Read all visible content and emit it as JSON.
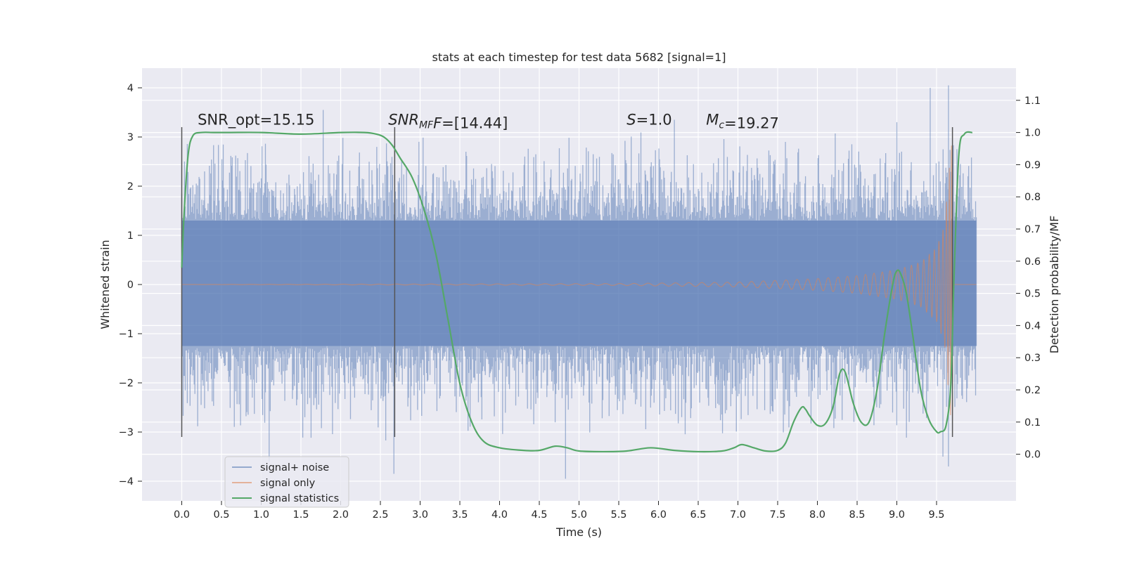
{
  "chart_data": {
    "type": "line",
    "title": "stats at each timestep for test data 5682 [signal=1]",
    "xlabel": "Time (s)",
    "ylabel": "Whitened strain",
    "ylabel_right": "Detection probability/MF",
    "xlim": [
      -0.5,
      10.5
    ],
    "ylim": [
      -4.4,
      4.4
    ],
    "ylim_right": [
      -0.145,
      1.2
    ],
    "x_ticks": [
      0.0,
      0.5,
      1.0,
      1.5,
      2.0,
      2.5,
      3.0,
      3.5,
      4.0,
      4.5,
      5.0,
      5.5,
      6.0,
      6.5,
      7.0,
      7.5,
      8.0,
      8.5,
      9.0,
      9.5
    ],
    "x_tick_labels": [
      "0.0",
      "0.5",
      "1.0",
      "1.5",
      "2.0",
      "2.5",
      "3.0",
      "3.5",
      "4.0",
      "4.5",
      "5.0",
      "5.5",
      "6.0",
      "6.5",
      "7.0",
      "7.5",
      "8.0",
      "8.5",
      "9.0",
      "9.5"
    ],
    "y_ticks": [
      4,
      3,
      2,
      1,
      0,
      -1,
      -2,
      -3,
      -4
    ],
    "y_tick_labels": [
      "4",
      "3",
      "2",
      "1",
      "0",
      "−1",
      "−2",
      "−3",
      "−4"
    ],
    "y_right_ticks": [
      1.1,
      1.0,
      0.9,
      0.8,
      0.7,
      0.6,
      0.5,
      0.4,
      0.3,
      0.2,
      0.1,
      0.0
    ],
    "y_right_tick_labels": [
      "1.1",
      "1.0",
      "0.9",
      "0.8",
      "0.7",
      "0.6",
      "0.5",
      "0.4",
      "0.3",
      "0.2",
      "0.1",
      "0.0"
    ],
    "grid": true,
    "legend_position": "lower-left",
    "series": [
      {
        "name": "signal+ noise",
        "color": "#4c72b0",
        "axis": "left",
        "x_range": [
          0.0,
          10.0
        ],
        "band_core": [
          -1.25,
          1.3
        ],
        "typical_spike_range": [
          -2.6,
          2.6
        ],
        "peaks": [
          {
            "x": 1.78,
            "y": 3.55
          },
          {
            "x": 6.2,
            "y": 3.35
          },
          {
            "x": 9.42,
            "y": 4.0
          },
          {
            "x": 9.65,
            "y": 4.05
          },
          {
            "x": 9.0,
            "y": 3.3
          },
          {
            "x": 1.1,
            "y": -3.6
          },
          {
            "x": 2.67,
            "y": -3.85
          },
          {
            "x": 4.83,
            "y": -3.95
          },
          {
            "x": 9.65,
            "y": -3.7
          },
          {
            "x": 9.58,
            "y": -3.5
          }
        ]
      },
      {
        "name": "signal only",
        "color": "#dd8452",
        "axis": "left",
        "envelope": [
          [
            0.0,
            0.0
          ],
          [
            5.5,
            0.02
          ],
          [
            7.0,
            0.05
          ],
          [
            8.0,
            0.12
          ],
          [
            8.5,
            0.18
          ],
          [
            9.0,
            0.3
          ],
          [
            9.3,
            0.45
          ],
          [
            9.5,
            0.75
          ],
          [
            9.6,
            1.2
          ],
          [
            9.65,
            2.2
          ],
          [
            9.69,
            3.0
          ],
          [
            9.7,
            0.0
          ],
          [
            10.0,
            0.0
          ]
        ]
      },
      {
        "name": "signal statistics",
        "color": "#55a868",
        "axis": "right",
        "x": [
          0.0,
          0.03,
          0.08,
          0.14,
          0.25,
          0.4,
          0.6,
          1.0,
          1.5,
          2.0,
          2.3,
          2.45,
          2.55,
          2.65,
          2.75,
          2.9,
          3.05,
          3.2,
          3.35,
          3.5,
          3.65,
          3.8,
          4.0,
          4.3,
          4.5,
          4.7,
          4.85,
          5.0,
          5.3,
          5.6,
          5.9,
          6.2,
          6.5,
          6.8,
          6.95,
          7.05,
          7.2,
          7.35,
          7.5,
          7.6,
          7.7,
          7.8,
          7.85,
          7.9,
          8.0,
          8.1,
          8.2,
          8.28,
          8.35,
          8.45,
          8.55,
          8.65,
          8.75,
          8.85,
          8.95,
          9.0,
          9.05,
          9.12,
          9.2,
          9.3,
          9.4,
          9.5,
          9.55,
          9.62,
          9.68,
          9.72,
          9.78,
          9.85,
          9.95
        ],
        "y": [
          0.58,
          0.75,
          0.93,
          0.99,
          1.0,
          1.0,
          1.0,
          1.0,
          0.995,
          1.0,
          1.0,
          0.995,
          0.985,
          0.96,
          0.92,
          0.86,
          0.76,
          0.62,
          0.42,
          0.22,
          0.1,
          0.04,
          0.02,
          0.012,
          0.012,
          0.025,
          0.02,
          0.01,
          0.008,
          0.01,
          0.02,
          0.012,
          0.008,
          0.01,
          0.02,
          0.03,
          0.02,
          0.01,
          0.012,
          0.035,
          0.1,
          0.145,
          0.14,
          0.12,
          0.09,
          0.095,
          0.15,
          0.25,
          0.255,
          0.16,
          0.1,
          0.1,
          0.2,
          0.38,
          0.53,
          0.57,
          0.56,
          0.5,
          0.37,
          0.2,
          0.11,
          0.07,
          0.07,
          0.09,
          0.22,
          0.55,
          0.93,
          0.995,
          1.0
        ]
      }
    ],
    "vertical_lines": [
      {
        "x": 0.0,
        "y_range": [
          -3.1,
          3.2
        ]
      },
      {
        "x": 2.68,
        "y_range": [
          -3.1,
          3.2
        ]
      },
      {
        "x": 9.7,
        "y_range": [
          -3.1,
          3.2
        ]
      }
    ],
    "annotations": [
      {
        "x": 0.2,
        "y": 3.25,
        "parts": [
          {
            "text": "SNR_opt=15.15",
            "style": "normal"
          }
        ]
      },
      {
        "x": 2.6,
        "y": 3.25,
        "parts": [
          {
            "text": "SNR",
            "style": "italic"
          },
          {
            "text": "MF",
            "style": "italic",
            "sub": true
          },
          {
            "text": "F",
            "style": "italic"
          },
          {
            "text": "=[14.44]",
            "style": "normal"
          }
        ]
      },
      {
        "x": 5.6,
        "y": 3.25,
        "parts": [
          {
            "text": "S",
            "style": "italic"
          },
          {
            "text": "=1.0",
            "style": "normal"
          }
        ]
      },
      {
        "x": 6.6,
        "y": 3.25,
        "parts": [
          {
            "text": "M",
            "style": "italic"
          },
          {
            "text": "c",
            "style": "italic",
            "sub": true
          },
          {
            "text": "=19.27",
            "style": "normal"
          }
        ]
      }
    ]
  }
}
